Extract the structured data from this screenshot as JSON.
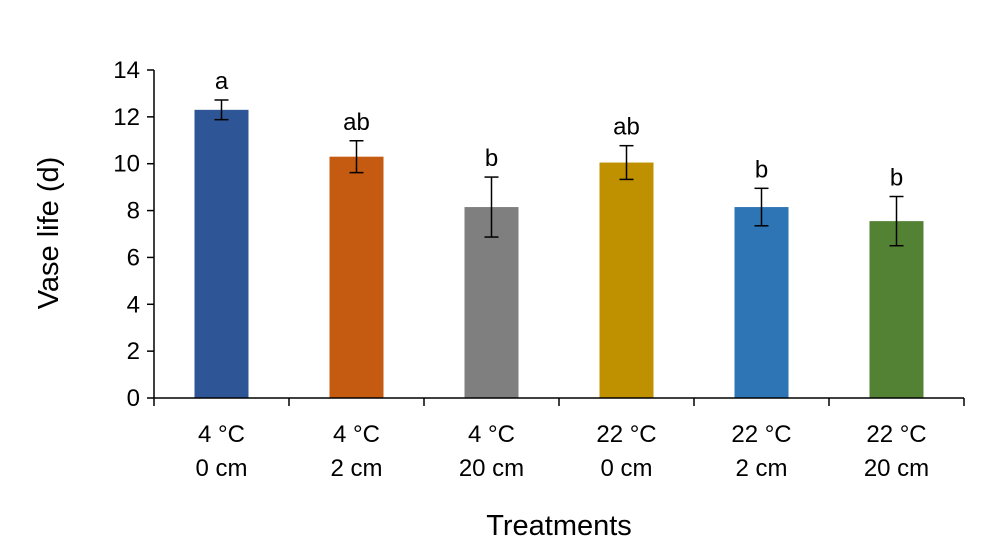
{
  "chart_data": {
    "type": "bar",
    "xlabel": "Treatments",
    "ylabel": "Vase life (d)",
    "ylim": [
      0,
      14
    ],
    "yticks": [
      0,
      2,
      4,
      6,
      8,
      10,
      12,
      14
    ],
    "ytick_labels": [
      "0",
      "2",
      "4",
      "6",
      "8",
      "10",
      "12",
      "14"
    ],
    "categories": [
      [
        "4 °C",
        "0 cm"
      ],
      [
        "4 °C",
        "2 cm"
      ],
      [
        "4 °C",
        "20 cm"
      ],
      [
        "22 °C",
        "0 cm"
      ],
      [
        "22 °C",
        "2 cm"
      ],
      [
        "22 °C",
        "20 cm"
      ]
    ],
    "values": [
      12.3,
      10.3,
      8.15,
      10.05,
      8.15,
      7.55
    ],
    "errors": [
      0.42,
      0.68,
      1.28,
      0.72,
      0.8,
      1.05
    ],
    "significance_letters": [
      "a",
      "ab",
      "b",
      "ab",
      "b",
      "b"
    ],
    "colors": [
      "#2e5596",
      "#c55a11",
      "#7f7f7f",
      "#bf9000",
      "#2e75b6",
      "#548235"
    ],
    "grid": false,
    "legend": "none"
  }
}
